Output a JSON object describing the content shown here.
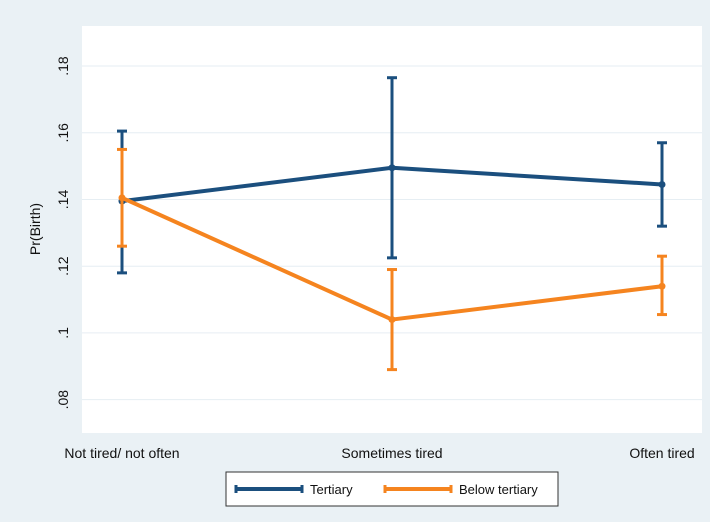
{
  "chart_data": {
    "type": "line",
    "title": "",
    "xlabel": "",
    "ylabel": "Pr(Birth)",
    "categories": [
      "Not tired/ not often",
      "Sometimes tired",
      "Often tired"
    ],
    "ylim": [
      0.07,
      0.192
    ],
    "yticks": [
      0.08,
      0.1,
      0.12,
      0.14,
      0.16,
      0.18
    ],
    "ytick_labels": [
      ".08",
      ".1",
      ".12",
      ".14",
      ".16",
      ".18"
    ],
    "grid": true,
    "legend_position": "bottom",
    "error_bars": true,
    "series": [
      {
        "name": "Tertiary",
        "color": "#1b4f7e",
        "values": [
          0.1395,
          0.1495,
          0.1445
        ],
        "lower": [
          0.118,
          0.1225,
          0.132
        ],
        "upper": [
          0.1605,
          0.1765,
          0.157
        ]
      },
      {
        "name": "Below tertiary",
        "color": "#f5841f",
        "values": [
          0.1405,
          0.104,
          0.114
        ],
        "lower": [
          0.126,
          0.089,
          0.1055
        ],
        "upper": [
          0.155,
          0.119,
          0.123
        ]
      }
    ]
  }
}
